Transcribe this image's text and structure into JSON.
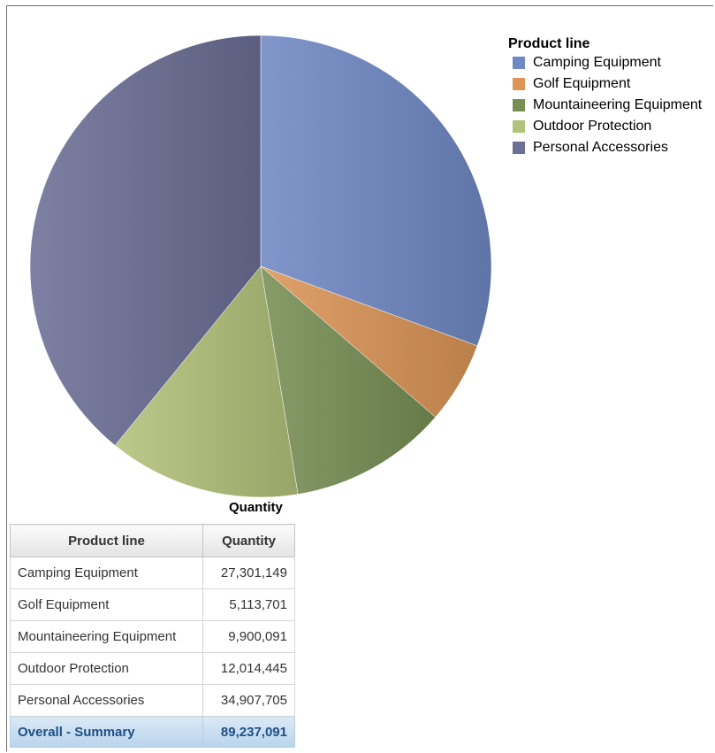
{
  "chart_data": {
    "type": "pie",
    "legend_title": "Product line",
    "legend_position": "top-right",
    "caption": "Quantity",
    "categories": [
      "Camping Equipment",
      "Golf Equipment",
      "Mountaineering Equipment",
      "Outdoor Protection",
      "Personal Accessories"
    ],
    "values": [
      27301149,
      5113701,
      9900091,
      12014445,
      34907705
    ],
    "colors": [
      "#7088c4",
      "#dc9557",
      "#778f55",
      "#b3c27a",
      "#6c6f96"
    ]
  },
  "table": {
    "headers": [
      "Product line",
      "Quantity"
    ],
    "rows": [
      [
        "Camping Equipment",
        "27,301,149"
      ],
      [
        "Golf Equipment",
        "5,113,701"
      ],
      [
        "Mountaineering Equipment",
        "9,900,091"
      ],
      [
        "Outdoor Protection",
        "12,014,445"
      ],
      [
        "Personal Accessories",
        "34,907,705"
      ]
    ],
    "summary": [
      "Overall - Summary",
      "89,237,091"
    ]
  }
}
